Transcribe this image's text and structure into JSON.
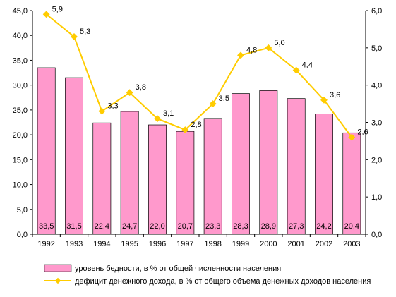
{
  "chart_data": {
    "type": "bar",
    "categories": [
      "1992",
      "1993",
      "1994",
      "1995",
      "1996",
      "1997",
      "1998",
      "1999",
      "2000",
      "2001",
      "2002",
      "2003"
    ],
    "series": [
      {
        "name": "уровень бедности, в % от общей численности населения",
        "type": "bar",
        "axis": "left",
        "color": "#ff99cc",
        "values": [
          33.5,
          31.5,
          22.4,
          24.7,
          22.0,
          20.7,
          23.3,
          28.3,
          28.9,
          27.3,
          24.2,
          20.4
        ],
        "labels": [
          "33,5",
          "31,5",
          "22,4",
          "24,7",
          "22,0",
          "20,7",
          "23,3",
          "28,3",
          "28,9",
          "27,3",
          "24,2",
          "20,4"
        ]
      },
      {
        "name": "дефицит денежного дохода, в % от общего объема денежных доходов населения",
        "type": "line",
        "axis": "right",
        "color": "#ffcc00",
        "values": [
          5.9,
          5.3,
          3.3,
          3.8,
          3.1,
          2.8,
          3.5,
          4.8,
          5.0,
          4.4,
          3.6,
          2.6
        ],
        "labels": [
          "5,9",
          "5,3",
          "3,3",
          "3,8",
          "3,1",
          "2,8",
          "3,5",
          "4,8",
          "5,0",
          "4,4",
          "3,6",
          "2,6"
        ]
      }
    ],
    "y_left": {
      "ylim": [
        0,
        45
      ],
      "ticks": [
        0,
        5,
        10,
        15,
        20,
        25,
        30,
        35,
        40,
        45
      ],
      "tick_labels": [
        "0,0",
        "5,0",
        "10,0",
        "15,0",
        "20,0",
        "25,0",
        "30,0",
        "35,0",
        "40,0",
        "45,0"
      ]
    },
    "y_right": {
      "ylim": [
        0,
        6
      ],
      "ticks": [
        0,
        1,
        2,
        3,
        4,
        5,
        6
      ],
      "tick_labels": [
        "0,0",
        "1,0",
        "2,0",
        "3,0",
        "4,0",
        "5,0",
        "6,0"
      ]
    },
    "grid": false,
    "legend_position": "bottom"
  },
  "colors": {
    "bar_fill": "#ff99cc",
    "line": "#ffcc00",
    "axis": "#000000"
  }
}
